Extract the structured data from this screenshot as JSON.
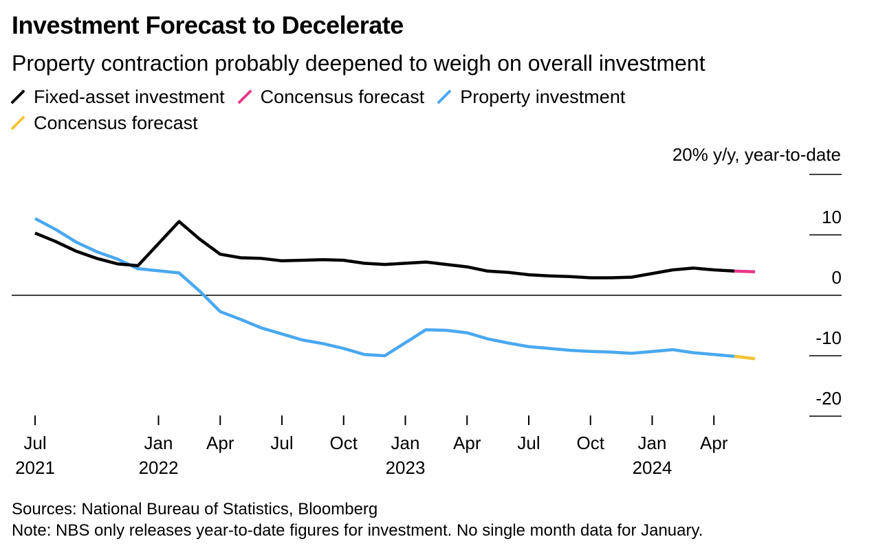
{
  "title": "Investment Forecast to Decelerate",
  "subtitle": "Property contraction probably deepened to weigh on overall investment",
  "legend": [
    {
      "label": "Fixed-asset investment",
      "color": "#000000"
    },
    {
      "label": "Concensus forecast",
      "color": "#e8388a"
    },
    {
      "label": "Property investment",
      "color": "#4aa8f0"
    },
    {
      "label": "Concensus forecast",
      "color": "#f5c334"
    }
  ],
  "chart_data": {
    "type": "line",
    "unit_label": "20% y/y, year-to-date",
    "ylim": [
      -20,
      20
    ],
    "yticks": [
      20,
      10,
      0,
      -10,
      -20
    ],
    "ytick_labels": [
      "20% y/y, year-to-date",
      "10",
      "0",
      "-10",
      "-20"
    ],
    "xlim": [
      "2021-07",
      "2024-07"
    ],
    "xticks": [
      {
        "date": "2021-07",
        "label": "Jul",
        "year": "2021"
      },
      {
        "date": "2022-01",
        "label": "Jan",
        "year": "2022"
      },
      {
        "date": "2022-04",
        "label": "Apr",
        "year": ""
      },
      {
        "date": "2022-07",
        "label": "Jul",
        "year": ""
      },
      {
        "date": "2022-10",
        "label": "Oct",
        "year": ""
      },
      {
        "date": "2023-01",
        "label": "Jan",
        "year": "2023"
      },
      {
        "date": "2023-04",
        "label": "Apr",
        "year": ""
      },
      {
        "date": "2023-07",
        "label": "Jul",
        "year": ""
      },
      {
        "date": "2023-10",
        "label": "Oct",
        "year": ""
      },
      {
        "date": "2024-01",
        "label": "Jan",
        "year": "2024"
      },
      {
        "date": "2024-04",
        "label": "Apr",
        "year": ""
      }
    ],
    "series": [
      {
        "name": "Fixed-asset investment",
        "color": "#000000",
        "points": [
          [
            "2021-07",
            10.3
          ],
          [
            "2021-08",
            8.9
          ],
          [
            "2021-09",
            7.3
          ],
          [
            "2021-10",
            6.1
          ],
          [
            "2021-11",
            5.2
          ],
          [
            "2021-12",
            4.9
          ],
          [
            "2022-02",
            12.2
          ],
          [
            "2022-03",
            9.3
          ],
          [
            "2022-04",
            6.8
          ],
          [
            "2022-05",
            6.2
          ],
          [
            "2022-06",
            6.1
          ],
          [
            "2022-07",
            5.7
          ],
          [
            "2022-08",
            5.8
          ],
          [
            "2022-09",
            5.9
          ],
          [
            "2022-10",
            5.8
          ],
          [
            "2022-11",
            5.3
          ],
          [
            "2022-12",
            5.1
          ],
          [
            "2023-02",
            5.5
          ],
          [
            "2023-03",
            5.1
          ],
          [
            "2023-04",
            4.7
          ],
          [
            "2023-05",
            4.0
          ],
          [
            "2023-06",
            3.8
          ],
          [
            "2023-07",
            3.4
          ],
          [
            "2023-08",
            3.2
          ],
          [
            "2023-09",
            3.1
          ],
          [
            "2023-10",
            2.9
          ],
          [
            "2023-11",
            2.9
          ],
          [
            "2023-12",
            3.0
          ],
          [
            "2024-02",
            4.2
          ],
          [
            "2024-03",
            4.5
          ],
          [
            "2024-04",
            4.2
          ],
          [
            "2024-05",
            4.0
          ]
        ]
      },
      {
        "name": "Concensus forecast",
        "color": "#e8388a",
        "points": [
          [
            "2024-05",
            4.0
          ],
          [
            "2024-06",
            3.9
          ]
        ]
      },
      {
        "name": "Property investment",
        "color": "#4aa8f0",
        "points": [
          [
            "2021-07",
            12.7
          ],
          [
            "2021-08",
            10.9
          ],
          [
            "2021-09",
            8.8
          ],
          [
            "2021-10",
            7.2
          ],
          [
            "2021-11",
            6.0
          ],
          [
            "2021-12",
            4.4
          ],
          [
            "2022-02",
            3.7
          ],
          [
            "2022-03",
            0.7
          ],
          [
            "2022-04",
            -2.7
          ],
          [
            "2022-05",
            -4.0
          ],
          [
            "2022-06",
            -5.4
          ],
          [
            "2022-07",
            -6.4
          ],
          [
            "2022-08",
            -7.4
          ],
          [
            "2022-09",
            -8.0
          ],
          [
            "2022-10",
            -8.8
          ],
          [
            "2022-11",
            -9.8
          ],
          [
            "2022-12",
            -10.0
          ],
          [
            "2023-02",
            -5.7
          ],
          [
            "2023-03",
            -5.8
          ],
          [
            "2023-04",
            -6.2
          ],
          [
            "2023-05",
            -7.2
          ],
          [
            "2023-06",
            -7.9
          ],
          [
            "2023-07",
            -8.5
          ],
          [
            "2023-08",
            -8.8
          ],
          [
            "2023-09",
            -9.1
          ],
          [
            "2023-10",
            -9.3
          ],
          [
            "2023-11",
            -9.4
          ],
          [
            "2023-12",
            -9.6
          ],
          [
            "2024-02",
            -9.0
          ],
          [
            "2024-03",
            -9.5
          ],
          [
            "2024-04",
            -9.8
          ],
          [
            "2024-05",
            -10.1
          ]
        ]
      },
      {
        "name": "Concensus forecast",
        "color": "#f5c334",
        "points": [
          [
            "2024-05",
            -10.1
          ],
          [
            "2024-06",
            -10.5
          ]
        ]
      }
    ]
  },
  "footer": {
    "sources": "Sources: National Bureau of Statistics, Bloomberg",
    "note": "Note: NBS only releases year-to-date figures for investment. No single month data for January."
  }
}
